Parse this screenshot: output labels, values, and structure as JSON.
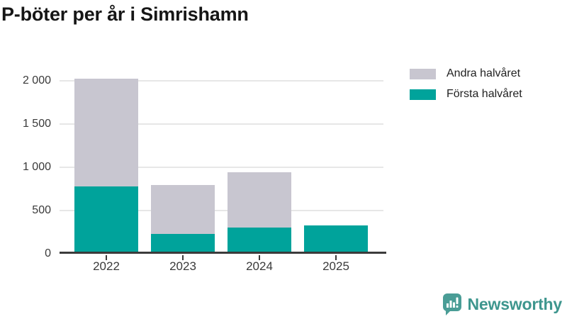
{
  "title": "P-böter per år i Simrishamn",
  "legend": {
    "items": [
      {
        "label": "Andra halvåret",
        "color": "#C8C6D0"
      },
      {
        "label": "Första halvåret",
        "color": "#00A39B"
      }
    ]
  },
  "chart_data": {
    "type": "bar",
    "stacked": true,
    "title": "P-böter per år i Simrishamn",
    "categories": [
      "2022",
      "2023",
      "2024",
      "2025"
    ],
    "series": [
      {
        "name": "Första halvåret",
        "color": "#00A39B",
        "values": [
          780,
          230,
          300,
          330
        ]
      },
      {
        "name": "Andra halvåret",
        "color": "#C8C6D0",
        "values": [
          1240,
          565,
          640,
          0
        ]
      }
    ],
    "totals": [
      2020,
      795,
      940,
      330
    ],
    "xlabel": "",
    "ylabel": "",
    "ylim": [
      0,
      2000
    ],
    "yticks": [
      0,
      500,
      1000,
      1500,
      2000
    ],
    "ytick_labels": [
      "0",
      "500",
      "1 000",
      "1 500",
      "2 000"
    ],
    "grid": true,
    "legend_position": "top-right"
  },
  "colors": {
    "first_half": "#00A39B",
    "second_half": "#C8C6D0",
    "gridline": "#E7E7E7",
    "axis": "#3B3B3B",
    "tick_label": "#3A3A3A",
    "title": "#161616",
    "brand_text": "#3E968E",
    "brand_icon": "#4A9D96"
  },
  "footer": {
    "brand": "Newsworthy"
  }
}
